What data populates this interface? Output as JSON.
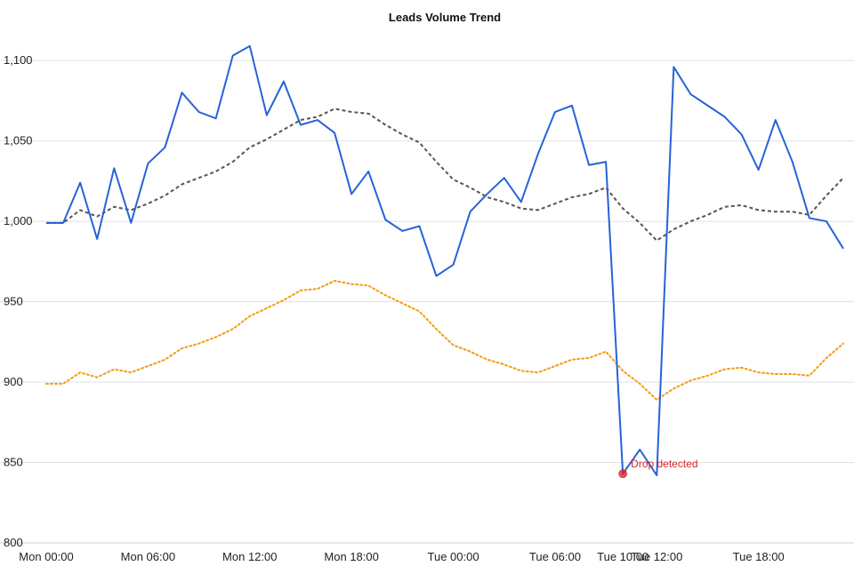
{
  "chart_data": {
    "type": "line",
    "title": "Leads Volume Trend",
    "xlabel": "",
    "ylabel": "",
    "ylim": [
      800,
      1110
    ],
    "y_ticks": [
      800,
      850,
      900,
      950,
      1000,
      1050,
      1100
    ],
    "y_tick_labels": [
      "800",
      "850",
      "900",
      "950",
      "1,000",
      "1,050",
      "1,100"
    ],
    "x_ticks": [
      {
        "label": "Mon 00:00",
        "pos": 0
      },
      {
        "label": "Mon 06:00",
        "pos": 6
      },
      {
        "label": "Mon 12:00",
        "pos": 12
      },
      {
        "label": "Mon 18:00",
        "pos": 18
      },
      {
        "label": "Tue 00:00",
        "pos": 24
      },
      {
        "label": "Tue 06:00",
        "pos": 30
      },
      {
        "label": "Tue 10:00",
        "pos": 34
      },
      {
        "label": "Tue 12:00",
        "pos": 36
      },
      {
        "label": "Tue 18:00",
        "pos": 42
      }
    ],
    "x_range": [
      0,
      47
    ],
    "grid": true,
    "series": [
      {
        "name": "",
        "color": "#2563d9",
        "style": "solid",
        "values": [
          999,
          999,
          1024,
          989,
          1033,
          999,
          1036,
          1046,
          1080,
          1068,
          1064,
          1103,
          1109,
          1066,
          1087,
          1060,
          1063,
          1055,
          1017,
          1031,
          1001,
          994,
          997,
          966,
          973,
          1006,
          1017,
          1027,
          1012,
          1042,
          1068,
          1072,
          1035,
          1037,
          843,
          858,
          842,
          1096,
          1079,
          1072,
          1065,
          1054,
          1032,
          1063,
          1037,
          1002,
          1000,
          983
        ]
      },
      {
        "name": "",
        "color": "#555555",
        "style": "dashed",
        "values": [
          999,
          999,
          1007,
          1003,
          1009,
          1007,
          1011,
          1016,
          1023,
          1027,
          1031,
          1037,
          1046,
          1051,
          1057,
          1063,
          1065,
          1070,
          1068,
          1067,
          1060,
          1054,
          1049,
          1037,
          1026,
          1021,
          1015,
          1012,
          1008,
          1007,
          1011,
          1015,
          1017,
          1021,
          1008,
          999,
          988,
          995,
          1000,
          1004,
          1009,
          1010,
          1007,
          1006,
          1006,
          1004,
          1016,
          1027
        ]
      },
      {
        "name": "",
        "color": "#f39c12",
        "style": "dotted",
        "values": [
          899,
          899,
          906,
          903,
          908,
          906,
          910,
          914,
          921,
          924,
          928,
          933,
          941,
          946,
          951,
          957,
          958,
          963,
          961,
          960,
          954,
          949,
          944,
          933,
          923,
          919,
          914,
          911,
          907,
          906,
          910,
          914,
          915,
          919,
          907,
          899,
          889,
          896,
          901,
          904,
          908,
          909,
          906,
          905,
          905,
          904,
          915,
          924
        ]
      }
    ],
    "annotations": [
      {
        "label": "Drop detected",
        "x": 34,
        "y": 843,
        "color": "#d62728"
      }
    ]
  }
}
